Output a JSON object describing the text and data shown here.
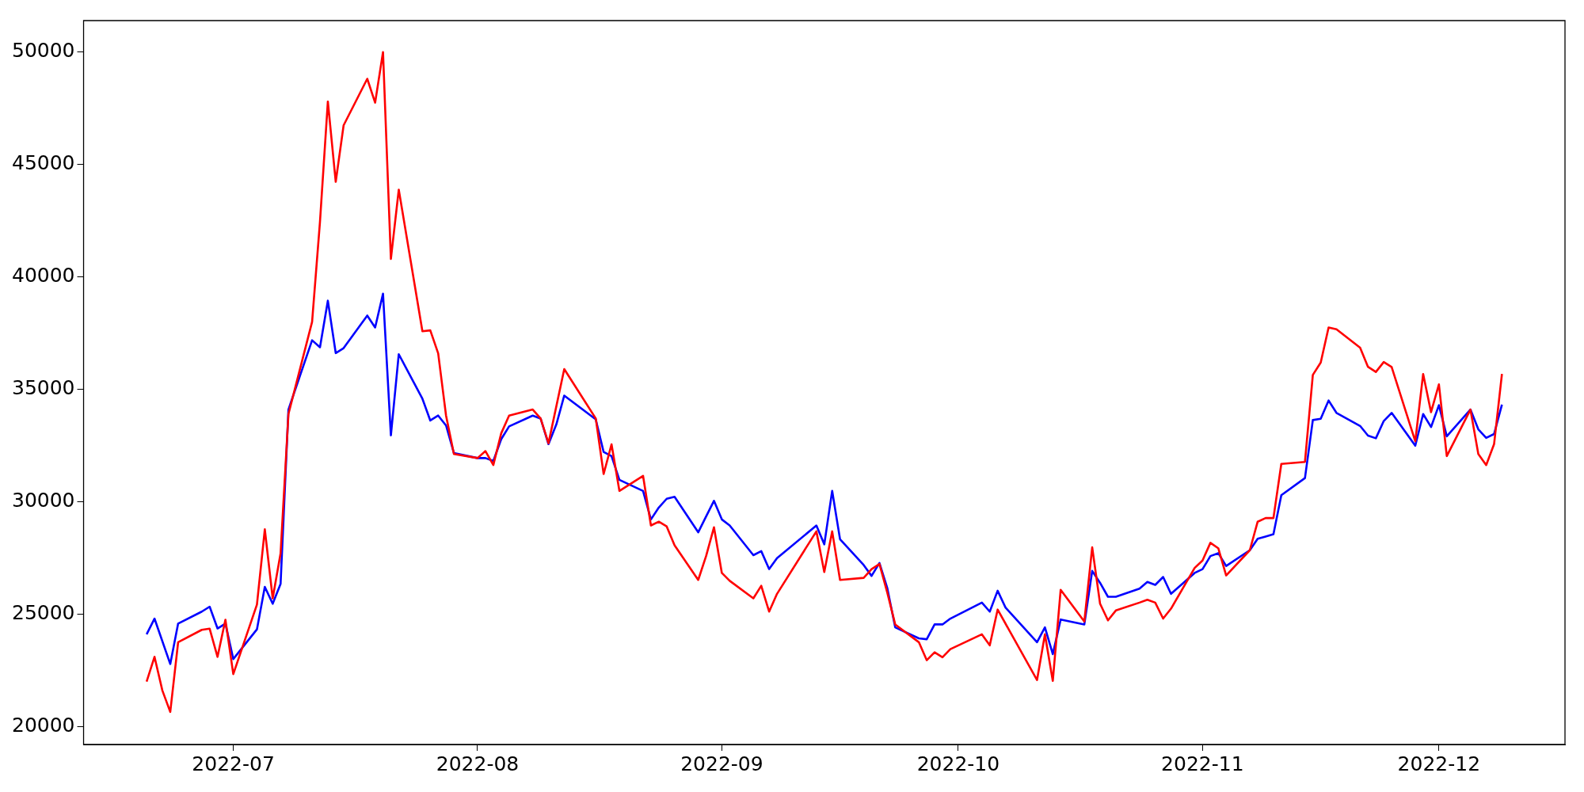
{
  "chart_data": {
    "type": "line",
    "xlim": [
      "2022-06-12",
      "2022-12-17"
    ],
    "xticks": [
      {
        "value": "2022-07-01",
        "label": "2022-07"
      },
      {
        "value": "2022-08-01",
        "label": "2022-08"
      },
      {
        "value": "2022-09-01",
        "label": "2022-09"
      },
      {
        "value": "2022-10-01",
        "label": "2022-10"
      },
      {
        "value": "2022-11-01",
        "label": "2022-11"
      },
      {
        "value": "2022-12-01",
        "label": "2022-12"
      }
    ],
    "ylim": [
      19200,
      51400
    ],
    "yticks": [
      20000,
      25000,
      30000,
      35000,
      40000,
      45000,
      50000
    ],
    "grid": false,
    "legend": false,
    "marker": "none",
    "line_style": "solid",
    "series": [
      {
        "color": "#ff0000",
        "x": [
          "2022-06-20",
          "2022-06-21",
          "2022-06-22",
          "2022-06-23",
          "2022-06-24",
          "2022-06-27",
          "2022-06-28",
          "2022-06-29",
          "2022-06-30",
          "2022-07-01",
          "2022-07-04",
          "2022-07-05",
          "2022-07-06",
          "2022-07-07",
          "2022-07-08",
          "2022-07-11",
          "2022-07-12",
          "2022-07-13",
          "2022-07-14",
          "2022-07-15",
          "2022-07-18",
          "2022-07-19",
          "2022-07-20",
          "2022-07-21",
          "2022-07-22",
          "2022-07-25",
          "2022-07-26",
          "2022-07-27",
          "2022-07-28",
          "2022-07-29",
          "2022-08-01",
          "2022-08-02",
          "2022-08-03",
          "2022-08-04",
          "2022-08-05",
          "2022-08-08",
          "2022-08-09",
          "2022-08-10",
          "2022-08-12",
          "2022-08-16",
          "2022-08-17",
          "2022-08-18",
          "2022-08-19",
          "2022-08-22",
          "2022-08-23",
          "2022-08-24",
          "2022-08-25",
          "2022-08-26",
          "2022-08-29",
          "2022-08-30",
          "2022-08-31",
          "2022-09-01",
          "2022-09-02",
          "2022-09-05",
          "2022-09-06",
          "2022-09-07",
          "2022-09-08",
          "2022-09-13",
          "2022-09-14",
          "2022-09-15",
          "2022-09-16",
          "2022-09-19",
          "2022-09-20",
          "2022-09-21",
          "2022-09-22",
          "2022-09-23",
          "2022-09-26",
          "2022-09-27",
          "2022-09-28",
          "2022-09-29",
          "2022-09-30",
          "2022-10-04",
          "2022-10-05",
          "2022-10-06",
          "2022-10-11",
          "2022-10-12",
          "2022-10-13",
          "2022-10-14",
          "2022-10-17",
          "2022-10-18",
          "2022-10-19",
          "2022-10-20",
          "2022-10-21",
          "2022-10-24",
          "2022-10-25",
          "2022-10-26",
          "2022-10-27",
          "2022-10-28",
          "2022-10-31",
          "2022-11-01",
          "2022-11-02",
          "2022-11-03",
          "2022-11-04",
          "2022-11-07",
          "2022-11-08",
          "2022-11-09",
          "2022-11-10",
          "2022-11-11",
          "2022-11-14",
          "2022-11-15",
          "2022-11-16",
          "2022-11-17",
          "2022-11-18",
          "2022-11-21",
          "2022-11-22",
          "2022-11-23",
          "2022-11-24",
          "2022-11-25",
          "2022-11-28",
          "2022-11-29",
          "2022-11-30",
          "2022-12-01",
          "2022-12-02",
          "2022-12-05",
          "2022-12-06",
          "2022-12-07",
          "2022-12-08",
          "2022-12-09"
        ],
        "values": [
          22000,
          23100,
          21600,
          20650,
          23750,
          24300,
          24350,
          23100,
          24750,
          22330,
          25420,
          28770,
          25700,
          27700,
          33900,
          38000,
          42450,
          47800,
          44230,
          46740,
          48810,
          47750,
          50000,
          40800,
          43880,
          37580,
          37620,
          36600,
          33830,
          32120,
          31940,
          32250,
          31630,
          33040,
          33830,
          34100,
          33700,
          32600,
          35900,
          33700,
          31230,
          32550,
          30480,
          31150,
          28940,
          29110,
          28900,
          28060,
          26520,
          27580,
          28860,
          26830,
          26480,
          25700,
          26260,
          25110,
          25900,
          28680,
          26870,
          28680,
          26520,
          26610,
          27000,
          27230,
          25950,
          24540,
          23750,
          22950,
          23300,
          23080,
          23440,
          24100,
          23610,
          25200,
          22070,
          24100,
          22030,
          26080,
          24670,
          27970,
          25460,
          24720,
          25160,
          25510,
          25640,
          25510,
          24800,
          25240,
          27050,
          27380,
          28170,
          27930,
          26720,
          27840,
          29110,
          29270,
          29270,
          31680,
          31770,
          35640,
          36190,
          37750,
          37670,
          36850,
          36000,
          35770,
          36210,
          35990,
          32690,
          35680,
          33980,
          35220,
          32030,
          34100,
          32120,
          31630,
          32560,
          35680
        ]
      },
      {
        "color": "#0000ff",
        "x": [
          "2022-06-20",
          "2022-06-21",
          "2022-06-23",
          "2022-06-24",
          "2022-06-27",
          "2022-06-28",
          "2022-06-29",
          "2022-06-30",
          "2022-07-01",
          "2022-07-04",
          "2022-07-05",
          "2022-07-06",
          "2022-07-07",
          "2022-07-08",
          "2022-07-11",
          "2022-07-12",
          "2022-07-13",
          "2022-07-14",
          "2022-07-15",
          "2022-07-18",
          "2022-07-19",
          "2022-07-20",
          "2022-07-21",
          "2022-07-22",
          "2022-07-25",
          "2022-07-26",
          "2022-07-27",
          "2022-07-28",
          "2022-07-29",
          "2022-08-01",
          "2022-08-02",
          "2022-08-03",
          "2022-08-04",
          "2022-08-05",
          "2022-08-08",
          "2022-08-09",
          "2022-08-10",
          "2022-08-11",
          "2022-08-12",
          "2022-08-16",
          "2022-08-17",
          "2022-08-18",
          "2022-08-19",
          "2022-08-22",
          "2022-08-23",
          "2022-08-24",
          "2022-08-25",
          "2022-08-26",
          "2022-08-29",
          "2022-08-30",
          "2022-08-31",
          "2022-09-01",
          "2022-09-02",
          "2022-09-05",
          "2022-09-06",
          "2022-09-07",
          "2022-09-08",
          "2022-09-13",
          "2022-09-14",
          "2022-09-15",
          "2022-09-16",
          "2022-09-19",
          "2022-09-20",
          "2022-09-21",
          "2022-09-22",
          "2022-09-23",
          "2022-09-26",
          "2022-09-27",
          "2022-09-28",
          "2022-09-29",
          "2022-09-30",
          "2022-10-04",
          "2022-10-05",
          "2022-10-06",
          "2022-10-07",
          "2022-10-11",
          "2022-10-12",
          "2022-10-13",
          "2022-10-14",
          "2022-10-17",
          "2022-10-18",
          "2022-10-19",
          "2022-10-20",
          "2022-10-21",
          "2022-10-24",
          "2022-10-25",
          "2022-10-26",
          "2022-10-27",
          "2022-10-28",
          "2022-10-31",
          "2022-11-01",
          "2022-11-02",
          "2022-11-03",
          "2022-11-04",
          "2022-11-07",
          "2022-11-08",
          "2022-11-09",
          "2022-11-10",
          "2022-11-11",
          "2022-11-14",
          "2022-11-15",
          "2022-11-16",
          "2022-11-17",
          "2022-11-18",
          "2022-11-21",
          "2022-11-22",
          "2022-11-23",
          "2022-11-24",
          "2022-11-25",
          "2022-11-28",
          "2022-11-29",
          "2022-11-30",
          "2022-12-01",
          "2022-12-02",
          "2022-12-05",
          "2022-12-06",
          "2022-12-07",
          "2022-12-08",
          "2022-12-09"
        ],
        "values": [
          24100,
          24800,
          22780,
          24580,
          25110,
          25330,
          24360,
          24580,
          23000,
          24320,
          26210,
          25460,
          26340,
          34100,
          37180,
          36870,
          38940,
          36610,
          36830,
          38280,
          37750,
          39250,
          32950,
          36560,
          34580,
          33610,
          33830,
          33390,
          32160,
          31940,
          31940,
          31810,
          32780,
          33350,
          33830,
          33700,
          32560,
          33440,
          34720,
          33660,
          32210,
          32030,
          30970,
          30480,
          29210,
          29740,
          30130,
          30220,
          28640,
          29340,
          30040,
          29210,
          28940,
          27620,
          27800,
          27000,
          27490,
          28940,
          28100,
          30480,
          28330,
          27180,
          26700,
          27270,
          26150,
          24410,
          23920,
          23880,
          24540,
          24540,
          24800,
          25510,
          25110,
          26040,
          25290,
          23750,
          24410,
          23220,
          24760,
          24540,
          26920,
          26390,
          25770,
          25770,
          26130,
          26430,
          26300,
          26650,
          25900,
          26830,
          27000,
          27580,
          27710,
          27140,
          27840,
          28350,
          28450,
          28550,
          30290,
          31050,
          33630,
          33690,
          34500,
          33950,
          33370,
          32940,
          32820,
          33590,
          33950,
          32490,
          33900,
          33320,
          34290,
          32910,
          34100,
          33220,
          32840,
          33010,
          34320
        ]
      }
    ]
  }
}
